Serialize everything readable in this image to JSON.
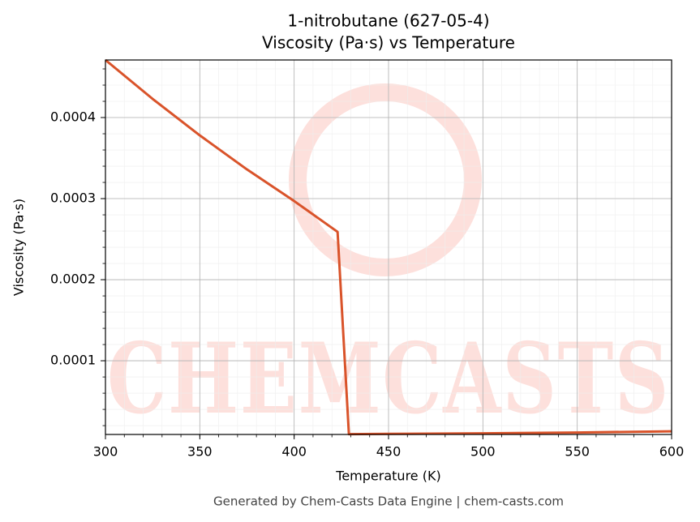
{
  "chart_data": {
    "type": "line",
    "title": "1-nitrobutane (627-05-4)",
    "subtitle": "Viscosity (Pa·s) vs Temperature",
    "x_label": "Temperature (K)",
    "y_label": "Viscosity (Pa·s)",
    "watermark": "CHEMCASTS",
    "footer": "Generated by Chem-Casts Data Engine | chem-casts.com",
    "x": [
      300,
      325,
      350,
      375,
      400,
      423,
      429,
      450,
      500,
      550,
      600
    ],
    "series": [
      {
        "name": "Viscosity",
        "color": "#d9532a",
        "values": [
          0.000471,
          0.000423,
          0.000378,
          0.000336,
          0.000297,
          0.000259,
          9.5e-06,
          9.8e-06,
          1.05e-05,
          1.15e-05,
          1.3e-05
        ]
      }
    ],
    "xlim": [
      300,
      600
    ],
    "xticks": [
      300,
      350,
      400,
      450,
      500,
      550,
      600
    ],
    "ylim": [
      9.1e-06,
      0.000471
    ],
    "yticks": [
      0.0001,
      0.0002,
      0.0003,
      0.0004
    ],
    "grid": true,
    "minor_grid": true
  }
}
